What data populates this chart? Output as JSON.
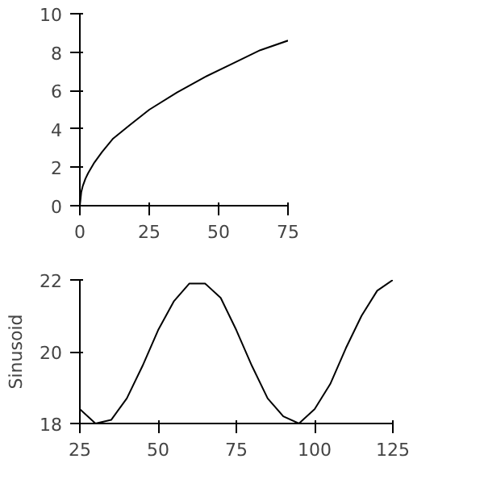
{
  "chart_data": [
    {
      "type": "line",
      "x": [
        0,
        0.5,
        1,
        2,
        3,
        5,
        8,
        12,
        18,
        25,
        35,
        45,
        55,
        65,
        75
      ],
      "values": [
        0,
        0.7,
        1,
        1.4,
        1.7,
        2.2,
        2.8,
        3.5,
        4.2,
        5,
        5.9,
        6.7,
        7.4,
        8.1,
        8.6
      ],
      "color": "#000000",
      "xlim": [
        0,
        75
      ],
      "ylim": [
        0,
        10
      ],
      "xticks": [
        0,
        25,
        50,
        75
      ],
      "yticks": [
        0,
        2,
        4,
        6,
        8,
        10
      ],
      "grid": false
    },
    {
      "type": "line",
      "ylabel": "Sinusoid",
      "x": [
        25,
        30,
        35,
        40,
        45,
        50,
        55,
        60,
        65,
        70,
        75,
        80,
        85,
        90,
        95,
        100,
        105,
        110,
        115,
        120,
        125
      ],
      "values": [
        18.4,
        18.0,
        18.1,
        18.7,
        19.6,
        20.6,
        21.4,
        21.9,
        21.9,
        21.5,
        20.6,
        19.6,
        18.7,
        18.2,
        18.0,
        18.4,
        19.1,
        20.1,
        21.0,
        21.7,
        22.0
      ],
      "color": "#000000",
      "xlim": [
        25,
        125
      ],
      "ylim": [
        18,
        22
      ],
      "xticks": [
        25,
        50,
        75,
        100,
        125
      ],
      "yticks": [
        18,
        20,
        22
      ],
      "grid": false
    }
  ]
}
